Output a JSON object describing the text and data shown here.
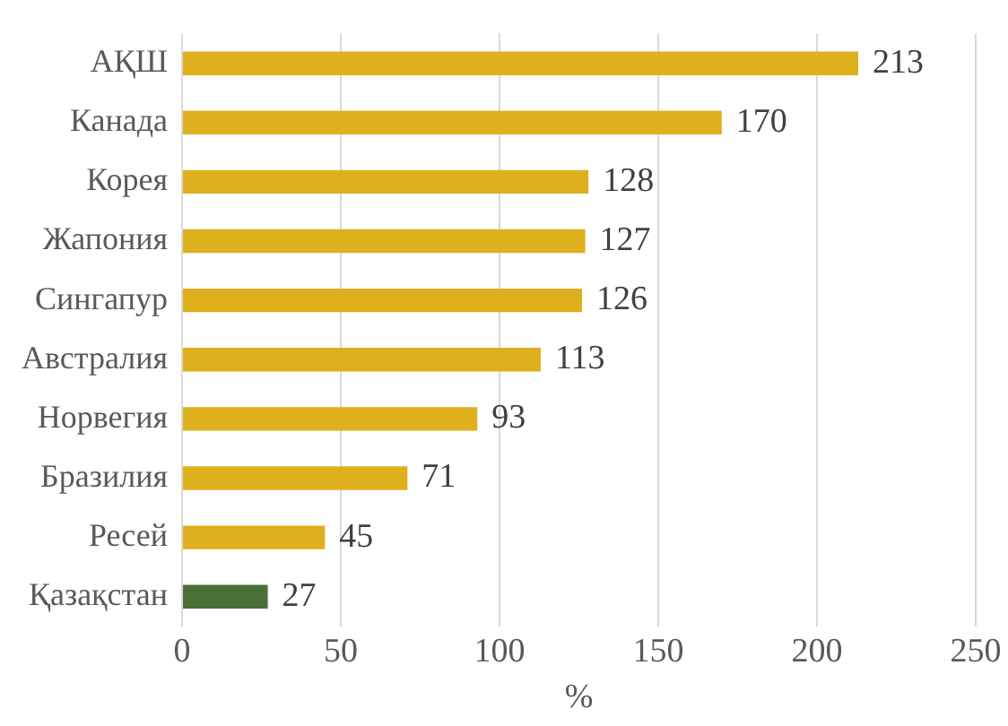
{
  "chart_data": {
    "type": "bar",
    "orientation": "horizontal",
    "xlabel": "%",
    "categories": [
      "АҚШ",
      "Канада",
      "Корея",
      "Жапония",
      "Сингапур",
      "Австралия",
      "Норвегия",
      "Бразилия",
      "Ресей",
      "Қазақстан"
    ],
    "values": [
      213,
      170,
      128,
      127,
      126,
      113,
      93,
      71,
      45,
      27
    ],
    "colors": [
      "#deb01e",
      "#deb01e",
      "#deb01e",
      "#deb01e",
      "#deb01e",
      "#deb01e",
      "#deb01e",
      "#deb01e",
      "#deb01e",
      "#4a7038"
    ],
    "xlim": [
      0,
      250
    ],
    "xticks": [
      0,
      50,
      100,
      150,
      200,
      250
    ],
    "grid": "x",
    "legend": false,
    "data_labels": true
  }
}
